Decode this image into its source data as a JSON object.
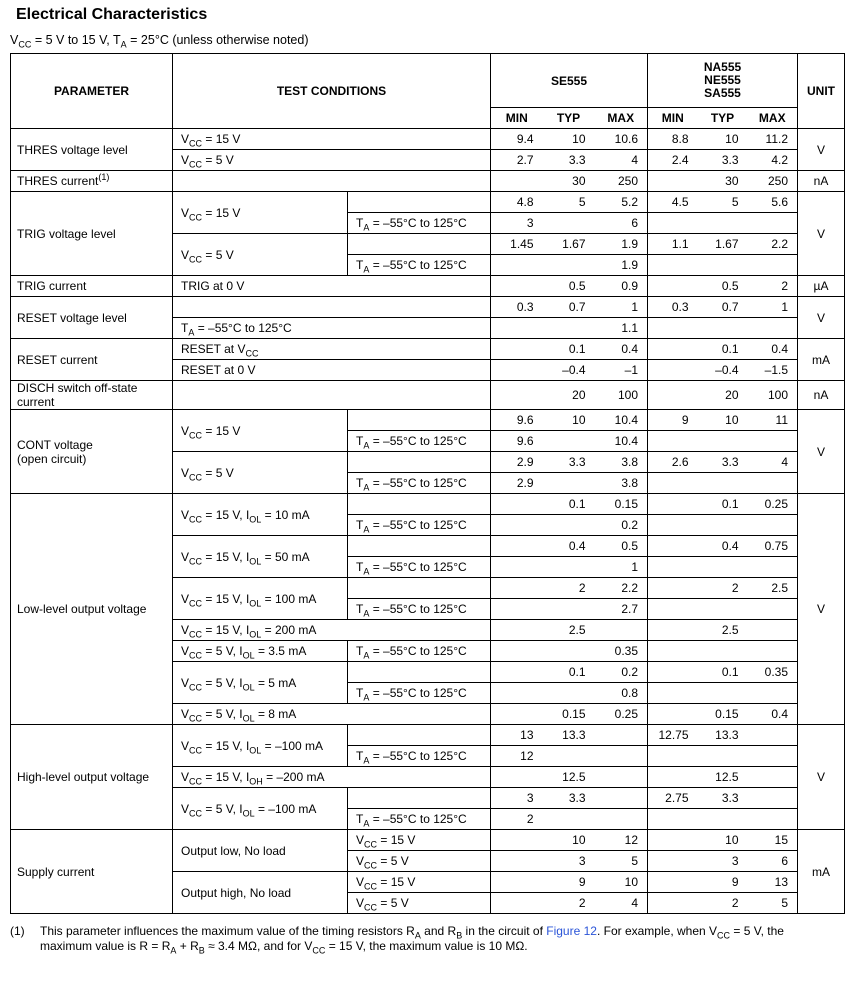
{
  "page": {
    "title": "Electrical Characteristics",
    "subtitle": "V~CC~ = 5 V to 15 V, T~A~ = 25°C (unless otherwise noted)"
  },
  "header": {
    "parameter": "PARAMETER",
    "test_conditions": "TEST CONDITIONS",
    "group1": "SE555",
    "group2": "NA555\nNE555\nSA555",
    "min": "MIN",
    "typ": "TYP",
    "max": "MAX",
    "unit": "UNIT"
  },
  "body": [
    {
      "param": "THRES voltage level",
      "cond": "V~CC~ = 15 V",
      "se": [
        "9.4",
        "10",
        "10.6"
      ],
      "na": [
        "8.8",
        "10",
        "11.2"
      ],
      "unit": "V"
    },
    {
      "cond": "V~CC~ = 5 V",
      "se": [
        "2.7",
        "3.3",
        "4"
      ],
      "na": [
        "2.4",
        "3.3",
        "4.2"
      ]
    },
    {
      "param": "THRES current^(1)^",
      "cond": "",
      "se": [
        "",
        "30",
        "250"
      ],
      "na": [
        "",
        "30",
        "250"
      ],
      "unit": "nA"
    },
    {
      "param": "TRIG voltage level",
      "cond": "V~CC~ = 15 V",
      "condb": "",
      "se": [
        "4.8",
        "5",
        "5.2"
      ],
      "na": [
        "4.5",
        "5",
        "5.6"
      ],
      "unit": "V"
    },
    {
      "condb": "T~A~ = –55°C to 125°C",
      "se": [
        "3",
        "",
        "6"
      ],
      "na": [
        "",
        "",
        ""
      ]
    },
    {
      "cond": "V~CC~ = 5 V",
      "condb": "",
      "se": [
        "1.45",
        "1.67",
        "1.9"
      ],
      "na": [
        "1.1",
        "1.67",
        "2.2"
      ]
    },
    {
      "condb": "T~A~ = –55°C to 125°C",
      "se": [
        "",
        "",
        "1.9"
      ],
      "na": [
        "",
        "",
        ""
      ]
    },
    {
      "param": "TRIG current",
      "cond": "TRIG at 0 V",
      "se": [
        "",
        "0.5",
        "0.9"
      ],
      "na": [
        "",
        "0.5",
        "2"
      ],
      "unit": "µA"
    },
    {
      "param": "RESET voltage level",
      "cond": "",
      "se": [
        "0.3",
        "0.7",
        "1"
      ],
      "na": [
        "0.3",
        "0.7",
        "1"
      ],
      "unit": "V"
    },
    {
      "cond": "T~A~ = –55°C to 125°C",
      "se": [
        "",
        "",
        "1.1"
      ],
      "na": [
        "",
        "",
        ""
      ]
    },
    {
      "param": "RESET current",
      "cond": "RESET at V~CC~",
      "se": [
        "",
        "0.1",
        "0.4"
      ],
      "na": [
        "",
        "0.1",
        "0.4"
      ],
      "unit": "mA"
    },
    {
      "cond": "RESET at 0 V",
      "se": [
        "",
        "–0.4",
        "–1"
      ],
      "na": [
        "",
        "–0.4",
        "–1.5"
      ]
    },
    {
      "param": "DISCH switch off-state\ncurrent",
      "cond": "",
      "se": [
        "",
        "20",
        "100"
      ],
      "na": [
        "",
        "20",
        "100"
      ],
      "unit": "nA"
    },
    {
      "param": "CONT voltage\n(open circuit)",
      "cond": "V~CC~ = 15 V",
      "condb": "",
      "se": [
        "9.6",
        "10",
        "10.4"
      ],
      "na": [
        "9",
        "10",
        "11"
      ],
      "unit": "V"
    },
    {
      "condb": "T~A~ = –55°C to 125°C",
      "se": [
        "9.6",
        "",
        "10.4"
      ],
      "na": [
        "",
        "",
        ""
      ]
    },
    {
      "cond": "V~CC~ = 5 V",
      "condb": "",
      "se": [
        "2.9",
        "3.3",
        "3.8"
      ],
      "na": [
        "2.6",
        "3.3",
        "4"
      ]
    },
    {
      "condb": "T~A~ = –55°C to 125°C",
      "se": [
        "2.9",
        "",
        "3.8"
      ],
      "na": [
        "",
        "",
        ""
      ]
    },
    {
      "param": "Low-level output voltage",
      "cond": "V~CC~ = 15 V, I~OL~ = 10 mA",
      "condb": "",
      "se": [
        "",
        "0.1",
        "0.15"
      ],
      "na": [
        "",
        "0.1",
        "0.25"
      ],
      "unit": "V"
    },
    {
      "condb": "T~A~ = –55°C to 125°C",
      "se": [
        "",
        "",
        "0.2"
      ],
      "na": [
        "",
        "",
        ""
      ]
    },
    {
      "cond": "V~CC~ = 15 V, I~OL~ = 50 mA",
      "condb": "",
      "se": [
        "",
        "0.4",
        "0.5"
      ],
      "na": [
        "",
        "0.4",
        "0.75"
      ]
    },
    {
      "condb": "T~A~ = –55°C to 125°C",
      "se": [
        "",
        "",
        "1"
      ],
      "na": [
        "",
        "",
        ""
      ]
    },
    {
      "cond": "V~CC~ = 15 V, I~OL~ = 100 mA",
      "condb": "",
      "se": [
        "",
        "2",
        "2.2"
      ],
      "na": [
        "",
        "2",
        "2.5"
      ]
    },
    {
      "condb": "T~A~ = –55°C to 125°C",
      "se": [
        "",
        "",
        "2.7"
      ],
      "na": [
        "",
        "",
        ""
      ]
    },
    {
      "cond": "V~CC~ = 15 V, I~OL~ = 200 mA",
      "se": [
        "",
        "2.5",
        ""
      ],
      "na": [
        "",
        "2.5",
        ""
      ]
    },
    {
      "cond": "V~CC~ = 5 V, I~OL~ = 3.5 mA",
      "condb": "T~A~ = –55°C to 125°C",
      "se": [
        "",
        "",
        "0.35"
      ],
      "na": [
        "",
        "",
        ""
      ]
    },
    {
      "cond": "V~CC~ = 5 V, I~OL~ = 5 mA",
      "condb": "",
      "se": [
        "",
        "0.1",
        "0.2"
      ],
      "na": [
        "",
        "0.1",
        "0.35"
      ]
    },
    {
      "condb": "T~A~ = –55°C to 125°C",
      "se": [
        "",
        "",
        "0.8"
      ],
      "na": [
        "",
        "",
        ""
      ]
    },
    {
      "cond": "V~CC~ = 5 V, I~OL~ = 8 mA",
      "se": [
        "",
        "0.15",
        "0.25"
      ],
      "na": [
        "",
        "0.15",
        "0.4"
      ]
    },
    {
      "param": "High-level output voltage",
      "cond": "V~CC~ = 15 V, I~OL~ = –100 mA",
      "condb": "",
      "se": [
        "13",
        "13.3",
        ""
      ],
      "na": [
        "12.75",
        "13.3",
        ""
      ],
      "unit": "V"
    },
    {
      "condb": "T~A~ = –55°C to 125°C",
      "se": [
        "12",
        "",
        ""
      ],
      "na": [
        "",
        "",
        ""
      ]
    },
    {
      "cond": "V~CC~ = 15 V, I~OH~ = –200 mA",
      "se": [
        "",
        "12.5",
        ""
      ],
      "na": [
        "",
        "12.5",
        ""
      ]
    },
    {
      "cond": "V~CC~ = 5 V, I~OL~ = –100 mA",
      "condb": "",
      "se": [
        "3",
        "3.3",
        ""
      ],
      "na": [
        "2.75",
        "3.3",
        ""
      ]
    },
    {
      "condb": "T~A~ = –55°C to 125°C",
      "se": [
        "2",
        "",
        ""
      ],
      "na": [
        "",
        "",
        ""
      ]
    },
    {
      "param": "Supply current",
      "cond": "Output low, No load",
      "condb": "V~CC~ = 15 V",
      "se": [
        "",
        "10",
        "12"
      ],
      "na": [
        "",
        "10",
        "15"
      ],
      "unit": "mA"
    },
    {
      "condb": "V~CC~ = 5 V",
      "se": [
        "",
        "3",
        "5"
      ],
      "na": [
        "",
        "3",
        "6"
      ]
    },
    {
      "cond": "Output high, No load",
      "condb": "V~CC~ = 15 V",
      "se": [
        "",
        "9",
        "10"
      ],
      "na": [
        "",
        "9",
        "13"
      ]
    },
    {
      "condb": "V~CC~ = 5 V",
      "se": [
        "",
        "2",
        "4"
      ],
      "na": [
        "",
        "2",
        "5"
      ]
    }
  ],
  "footnote": {
    "marker": "(1)",
    "text": "This parameter influences the maximum value of the timing resistors R~A~ and R~B~ in the circuit of [Figure 12]. For example, when V~CC~ = 5 V, the maximum value is R = R~A~ + R~B~ ≈ 3.4 MΩ, and for V~CC~ = 15 V, the maximum value is 10 MΩ."
  }
}
